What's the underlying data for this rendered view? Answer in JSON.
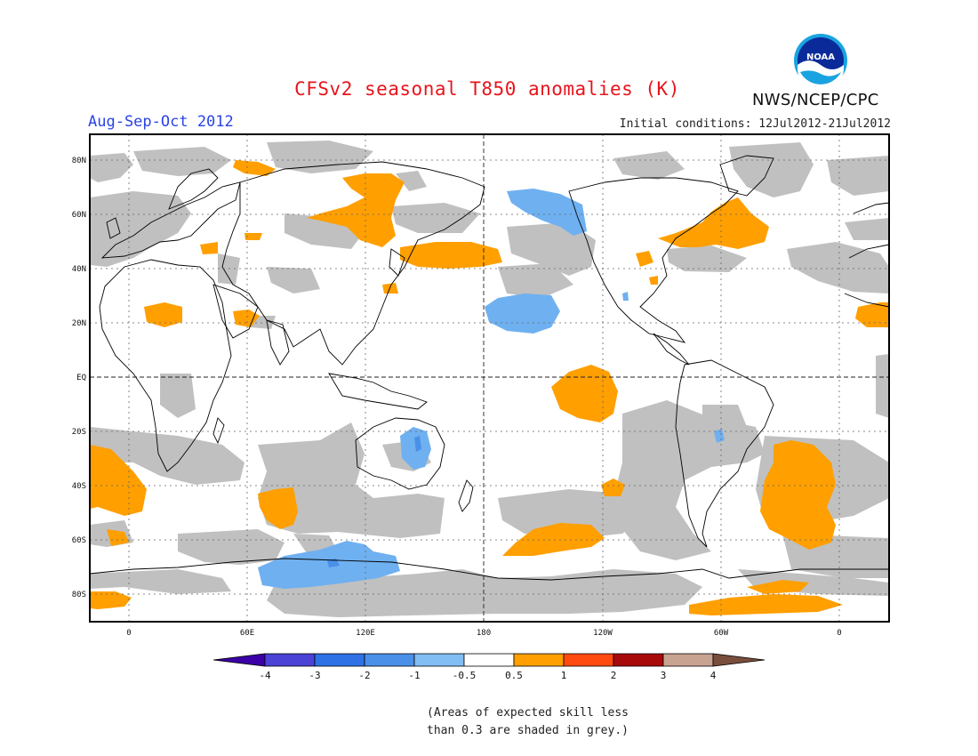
{
  "header": {
    "title": "CFSv2 seasonal T850 anomalies (K)",
    "season": "Aug-Sep-Oct 2012",
    "initial_conditions": "Initial conditions: 12Jul2012-21Jul2012",
    "agency": "NWS/NCEP/CPC",
    "logo_text": "NOAA"
  },
  "map": {
    "latitude_labels": [
      "80N",
      "60N",
      "40N",
      "20N",
      "EQ",
      "20S",
      "40S",
      "60S",
      "80S"
    ],
    "longitude_labels": [
      "0",
      "60E",
      "120E",
      "180",
      "120W",
      "60W",
      "0"
    ],
    "colors": {
      "skill_grey": "#c0c0c0",
      "warm_0_5_to_1": "#ff9f00",
      "cool_minus1_to_minus0_5": "#6fb0f0",
      "cool_minus2_to_minus1": "#4a90e8",
      "coastline": "#000000"
    }
  },
  "colorbar": {
    "labels": [
      "-4",
      "-3",
      "-2",
      "-1",
      "-0.5",
      "0.5",
      "1",
      "2",
      "3",
      "4"
    ],
    "colors": [
      "#3b00a8",
      "#4a43d6",
      "#2e72e6",
      "#4a90e8",
      "#82bdf4",
      "#ffffff",
      "#ff9f00",
      "#ff4a10",
      "#a80a0a",
      "#c9a391",
      "#7a4e3c"
    ]
  },
  "footnote": {
    "line1": "(Areas of expected skill less",
    "line2": "than 0.3 are shaded in grey.)"
  }
}
